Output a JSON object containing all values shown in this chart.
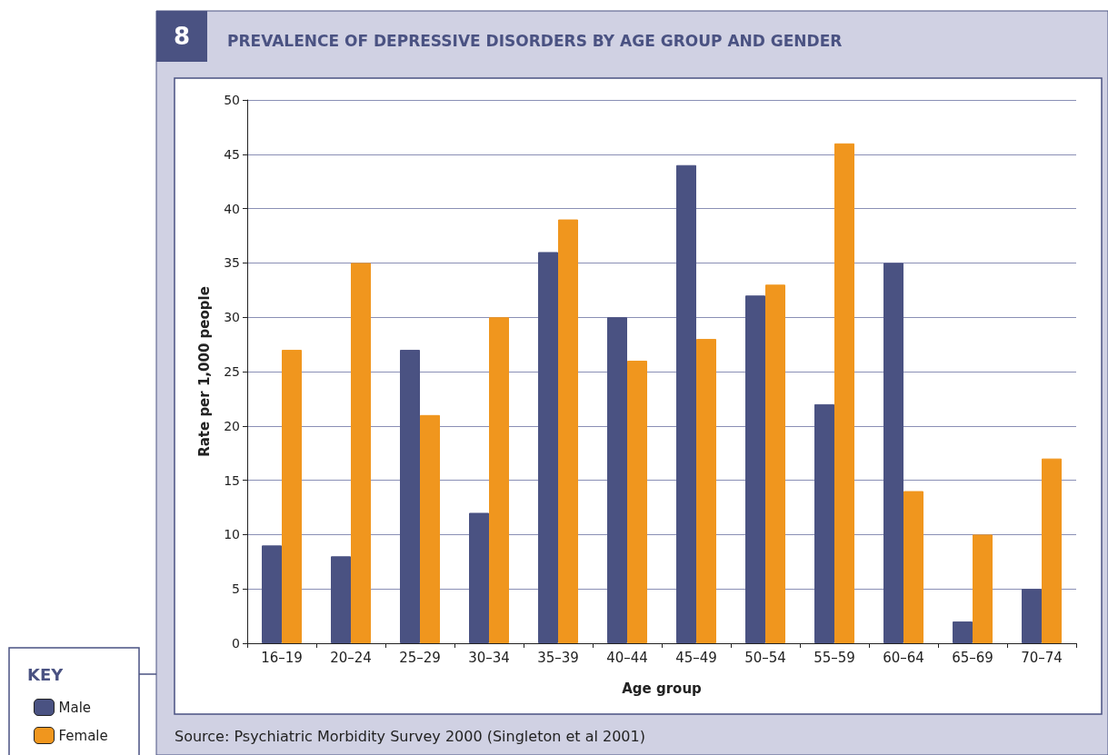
{
  "chart_data": {
    "type": "bar",
    "title": "PREVALENCE OF DEPRESSIVE DISORDERS BY AGE GROUP AND GENDER",
    "xlabel": "Age group",
    "ylabel": "Rate per 1,000 people",
    "legend_title": "KEY",
    "annotations": [
      "8",
      "Source: Psychiatric Morbidity Survey 2000 (Singleton et al 2001)"
    ],
    "categories": [
      "16–19",
      "20–24",
      "25–29",
      "30–34",
      "35–39",
      "40–44",
      "45–49",
      "50–54",
      "55–59",
      "60–64",
      "65–69",
      "70–74"
    ],
    "series": [
      {
        "name": "Male",
        "color": "#4a5282",
        "values": [
          9,
          8,
          27,
          12,
          36,
          30,
          44,
          32,
          22,
          35,
          2,
          5
        ]
      },
      {
        "name": "Female",
        "color": "#f0961e",
        "values": [
          27,
          35,
          21,
          30,
          39,
          26,
          28,
          33,
          46,
          14,
          10,
          17
        ]
      }
    ],
    "ylim": [
      0,
      50
    ],
    "yticks": [
      0,
      5,
      10,
      15,
      20,
      25,
      30,
      35,
      40,
      45,
      50
    ],
    "grid": "y",
    "legend": "bottom left"
  }
}
